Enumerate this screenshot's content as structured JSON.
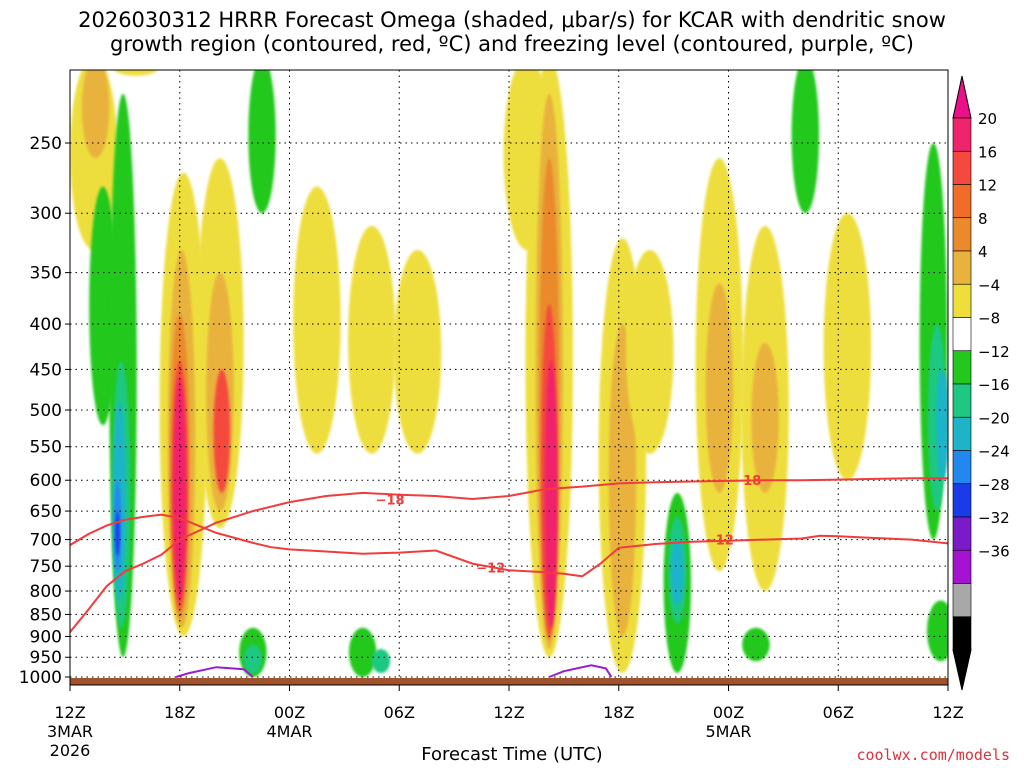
{
  "title": {
    "line1": "2026030312 HRRR Forecast Omega (shaded, μbar/s) for KCAR with dendritic snow",
    "line2": "growth region (contoured, red, ºC) and freezing level (contoured, purple, ºC)"
  },
  "footer": {
    "credit": "coolwx.com/models"
  },
  "chart_data": {
    "type": "heatmap",
    "title": "2026030312 HRRR Forecast Omega (shaded, μbar/s) for KCAR with dendritic snow growth region (contoured, red, ºC) and freezing level (contoured, purple, ºC)",
    "xlabel": "Forecast Time (UTC)",
    "ylabel": "",
    "x_unit": "forecast hour",
    "xlim": [
      0,
      48
    ],
    "y_unit": "pressure (hPa)",
    "ylim": [
      1000,
      200
    ],
    "y_scale": "log",
    "x_ticks": [
      {
        "hour": 0,
        "label": "12Z",
        "sub": "3MAR",
        "year": "2026"
      },
      {
        "hour": 6,
        "label": "18Z"
      },
      {
        "hour": 12,
        "label": "00Z",
        "sub": "4MAR"
      },
      {
        "hour": 18,
        "label": "06Z"
      },
      {
        "hour": 24,
        "label": "12Z"
      },
      {
        "hour": 30,
        "label": "18Z"
      },
      {
        "hour": 36,
        "label": "00Z",
        "sub": "5MAR"
      },
      {
        "hour": 42,
        "label": "06Z"
      },
      {
        "hour": 48,
        "label": "12Z"
      }
    ],
    "y_ticks": [
      250,
      300,
      350,
      400,
      450,
      500,
      550,
      600,
      650,
      700,
      750,
      800,
      850,
      900,
      950,
      1000
    ],
    "grid": true,
    "colorbar": {
      "position": "right",
      "labels": [
        "20",
        "16",
        "12",
        "8",
        "4",
        "−4",
        "−8",
        "−12",
        "−16",
        "−20",
        "−24",
        "−28",
        "−32",
        "−36"
      ],
      "colors": [
        "#f0246c",
        "#f5483e",
        "#f06c28",
        "#ea8a2c",
        "#e8b23c",
        "#eede3c",
        "#ffffff",
        "#22c81e",
        "#1ec882",
        "#1eb4c8",
        "#2288f0",
        "#1a3ce8",
        "#7a1ac8",
        "#a414d0",
        "#a8a8a8",
        "#000000"
      ],
      "top_triangle": "#ea108a",
      "bottom_triangle": "#000000"
    },
    "omega_colors": {
      "up_4_8": "#eede3c",
      "up_8_12": "#e8b23c",
      "up_12_16": "#ea8a2c",
      "up_16_20": "#f5483e",
      "up_20": "#f0246c",
      "down_4_8": "#22c81e",
      "down_8_12": "#1ec882",
      "down_12_16": "#1eb4c8",
      "down_16_20": "#2288f0",
      "down_20_24": "#1a3ce8",
      "terrain": "#a0522d"
    },
    "omega_features": [
      {
        "hour": 1.3,
        "p_top": 200,
        "p_bot": 330,
        "level": "up_4_8"
      },
      {
        "hour": 1.4,
        "p_top": 200,
        "p_bot": 260,
        "level": "up_8_12"
      },
      {
        "hour": 1.8,
        "p_top": 280,
        "p_bot": 520,
        "level": "down_4_8"
      },
      {
        "hour": 2.9,
        "p_top": 220,
        "p_bot": 950,
        "level": "down_4_8"
      },
      {
        "hour": 2.8,
        "p_top": 440,
        "p_bot": 880,
        "level": "down_8_12"
      },
      {
        "hour": 2.7,
        "p_top": 490,
        "p_bot": 820,
        "level": "down_12_16"
      },
      {
        "hour": 2.6,
        "p_top": 600,
        "p_bot": 760,
        "level": "down_16_20"
      },
      {
        "hour": 2.6,
        "p_top": 650,
        "p_bot": 730,
        "level": "down_20_24"
      },
      {
        "hour": 3.6,
        "p_top": 200,
        "p_bot": 210,
        "level": "up_4_8"
      },
      {
        "hour": 6.2,
        "p_top": 270,
        "p_bot": 900,
        "level": "up_4_8"
      },
      {
        "hour": 6.1,
        "p_top": 330,
        "p_bot": 880,
        "level": "up_8_12"
      },
      {
        "hour": 6.0,
        "p_top": 390,
        "p_bot": 860,
        "level": "up_12_16"
      },
      {
        "hour": 6.0,
        "p_top": 440,
        "p_bot": 840,
        "level": "up_16_20"
      },
      {
        "hour": 6.0,
        "p_top": 460,
        "p_bot": 820,
        "level": "up_20"
      },
      {
        "hour": 8.2,
        "p_top": 260,
        "p_bot": 680,
        "level": "up_4_8"
      },
      {
        "hour": 8.2,
        "p_top": 350,
        "p_bot": 650,
        "level": "up_8_12"
      },
      {
        "hour": 8.3,
        "p_top": 450,
        "p_bot": 620,
        "level": "up_16_20"
      },
      {
        "hour": 10.5,
        "p_top": 200,
        "p_bot": 300,
        "level": "down_4_8"
      },
      {
        "hour": 13.5,
        "p_top": 280,
        "p_bot": 560,
        "level": "up_4_8"
      },
      {
        "hour": 16.5,
        "p_top": 310,
        "p_bot": 560,
        "level": "up_4_8"
      },
      {
        "hour": 19.0,
        "p_top": 330,
        "p_bot": 560,
        "level": "up_4_8"
      },
      {
        "hour": 10.0,
        "p_top": 880,
        "p_bot": 1000,
        "level": "down_4_8"
      },
      {
        "hour": 10.0,
        "p_top": 920,
        "p_bot": 990,
        "level": "down_8_12"
      },
      {
        "hour": 16.0,
        "p_top": 880,
        "p_bot": 1000,
        "level": "down_4_8"
      },
      {
        "hour": 17.0,
        "p_top": 930,
        "p_bot": 990,
        "level": "down_8_12"
      },
      {
        "hour": 25.0,
        "p_top": 200,
        "p_bot": 330,
        "level": "up_4_8"
      },
      {
        "hour": 26.2,
        "p_top": 200,
        "p_bot": 950,
        "level": "up_4_8"
      },
      {
        "hour": 26.2,
        "p_top": 220,
        "p_bot": 930,
        "level": "up_8_12"
      },
      {
        "hour": 26.2,
        "p_top": 260,
        "p_bot": 910,
        "level": "up_12_16"
      },
      {
        "hour": 26.2,
        "p_top": 380,
        "p_bot": 900,
        "level": "up_16_20"
      },
      {
        "hour": 26.3,
        "p_top": 440,
        "p_bot": 880,
        "level": "up_20"
      },
      {
        "hour": 30.2,
        "p_top": 320,
        "p_bot": 990,
        "level": "up_4_8"
      },
      {
        "hour": 30.2,
        "p_top": 400,
        "p_bot": 900,
        "level": "up_8_12"
      },
      {
        "hour": 31.7,
        "p_top": 330,
        "p_bot": 560,
        "level": "up_4_8"
      },
      {
        "hour": 33.2,
        "p_top": 620,
        "p_bot": 990,
        "level": "down_4_8"
      },
      {
        "hour": 33.2,
        "p_top": 660,
        "p_bot": 870,
        "level": "down_8_12"
      },
      {
        "hour": 33.2,
        "p_top": 700,
        "p_bot": 830,
        "level": "down_12_16"
      },
      {
        "hour": 35.5,
        "p_top": 260,
        "p_bot": 760,
        "level": "up_4_8"
      },
      {
        "hour": 35.5,
        "p_top": 360,
        "p_bot": 620,
        "level": "up_8_12"
      },
      {
        "hour": 38.0,
        "p_top": 310,
        "p_bot": 800,
        "level": "up_4_8"
      },
      {
        "hour": 38.0,
        "p_top": 420,
        "p_bot": 620,
        "level": "up_8_12"
      },
      {
        "hour": 40.2,
        "p_top": 200,
        "p_bot": 300,
        "level": "down_4_8"
      },
      {
        "hour": 42.5,
        "p_top": 300,
        "p_bot": 600,
        "level": "up_4_8"
      },
      {
        "hour": 37.5,
        "p_top": 880,
        "p_bot": 960,
        "level": "down_4_8"
      },
      {
        "hour": 47.2,
        "p_top": 250,
        "p_bot": 700,
        "level": "down_4_8"
      },
      {
        "hour": 47.4,
        "p_top": 400,
        "p_bot": 650,
        "level": "down_8_12"
      },
      {
        "hour": 47.7,
        "p_top": 450,
        "p_bot": 600,
        "level": "down_12_16"
      },
      {
        "hour": 47.6,
        "p_top": 820,
        "p_bot": 960,
        "level": "down_4_8"
      }
    ],
    "series": [
      {
        "name": "dendritic growth −18 ºC isotherm",
        "color": "#f03c3c",
        "label": "−18",
        "label_positions": [
          [
            17.5,
            631
          ],
          [
            37.0,
            600
          ]
        ],
        "points": [
          [
            0,
            890
          ],
          [
            1,
            840
          ],
          [
            2,
            790
          ],
          [
            3,
            760
          ],
          [
            4,
            745
          ],
          [
            5,
            728
          ],
          [
            6,
            700
          ],
          [
            8,
            670
          ],
          [
            10,
            650
          ],
          [
            12,
            635
          ],
          [
            14,
            625
          ],
          [
            16,
            620
          ],
          [
            18,
            623
          ],
          [
            20,
            625
          ],
          [
            22,
            630
          ],
          [
            24,
            625
          ],
          [
            26,
            614
          ],
          [
            28,
            610
          ],
          [
            30,
            605
          ],
          [
            32,
            603
          ],
          [
            34,
            602
          ],
          [
            36,
            601
          ],
          [
            38,
            600
          ],
          [
            40,
            600
          ],
          [
            42,
            599
          ],
          [
            44,
            598
          ],
          [
            46,
            597
          ],
          [
            48,
            597
          ]
        ]
      },
      {
        "name": "dendritic growth −12 ºC isotherm",
        "color": "#f03c3c",
        "label": "−12",
        "label_positions": [
          [
            23.0,
            753
          ],
          [
            35.5,
            700
          ]
        ],
        "points": [
          [
            0,
            710
          ],
          [
            1,
            690
          ],
          [
            2,
            675
          ],
          [
            3,
            665
          ],
          [
            4,
            660
          ],
          [
            5,
            656
          ],
          [
            6,
            662
          ],
          [
            8,
            688
          ],
          [
            10,
            706
          ],
          [
            11,
            714
          ],
          [
            12,
            718
          ],
          [
            14,
            722
          ],
          [
            16,
            726
          ],
          [
            18,
            724
          ],
          [
            20,
            720
          ],
          [
            22,
            745
          ],
          [
            24,
            758
          ],
          [
            26,
            762
          ],
          [
            27,
            765
          ],
          [
            28,
            770
          ],
          [
            29,
            745
          ],
          [
            30,
            715
          ],
          [
            32,
            708
          ],
          [
            34,
            704
          ],
          [
            36,
            702
          ],
          [
            38,
            700
          ],
          [
            40,
            698
          ],
          [
            41,
            693
          ],
          [
            42,
            694
          ],
          [
            44,
            697
          ],
          [
            46,
            700
          ],
          [
            48,
            707
          ]
        ]
      },
      {
        "name": "freezing level 0 ºC (purple)",
        "color": "#9a1ccc",
        "label": "",
        "label_positions": [],
        "points": [
          [
            5.8,
            1000
          ],
          [
            6.5,
            990
          ],
          [
            8.0,
            975
          ],
          [
            9.5,
            980
          ],
          [
            10.0,
            1000
          ]
        ]
      },
      {
        "name": "freezing level 0 ºC (purple) day 2",
        "color": "#9a1ccc",
        "label": "",
        "label_positions": [],
        "points": [
          [
            26.2,
            1000
          ],
          [
            27.0,
            985
          ],
          [
            28.5,
            970
          ],
          [
            29.3,
            978
          ],
          [
            29.6,
            1000
          ]
        ]
      }
    ]
  },
  "axis_title": "Forecast Time (UTC)"
}
